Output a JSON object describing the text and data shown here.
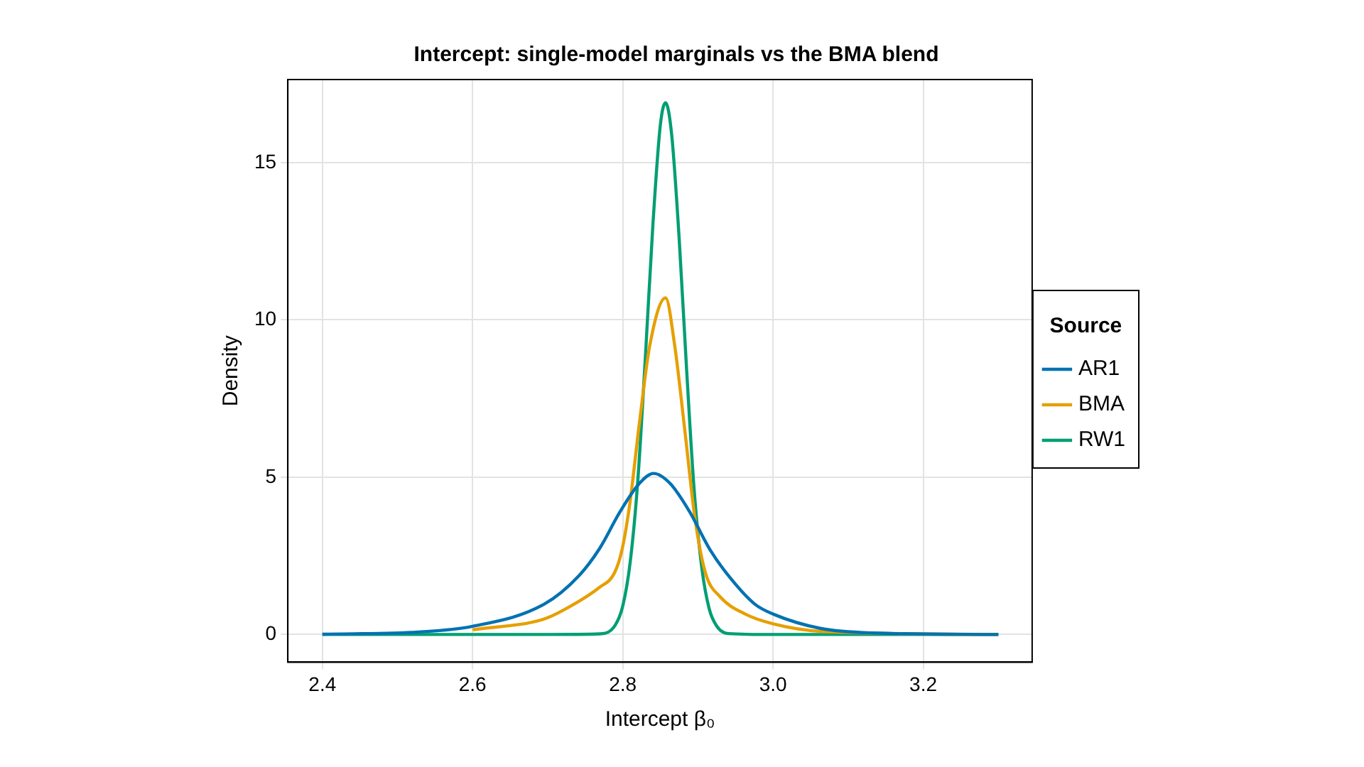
{
  "chart_data": {
    "type": "line",
    "title": "Intercept: single-model marginals vs the BMA blend",
    "xlabel": "Intercept β₀",
    "ylabel": "Density",
    "legend_title": "Source",
    "legend": "right",
    "grid": true,
    "marker": "none",
    "line_style": "solid",
    "xlim": [
      2.354,
      3.345
    ],
    "ylim": [
      -0.88,
      17.64
    ],
    "xticks": [
      2.4,
      2.6,
      2.8,
      {
        "value": 3.0,
        "label": "3.0"
      },
      3.2
    ],
    "yticks": [
      0,
      5,
      10,
      15
    ],
    "series": [
      {
        "name": "AR1",
        "color": "#0072b2",
        "x": [
          2.4,
          2.528,
          2.6,
          2.695,
          2.742,
          2.769,
          2.796,
          2.822,
          2.841,
          2.863,
          2.889,
          2.916,
          2.943,
          2.976,
          3.0,
          3.064,
          3.131,
          3.3
        ],
        "values": [
          0.01,
          0.08,
          0.26,
          0.96,
          1.88,
          2.73,
          3.89,
          4.8,
          5.12,
          4.8,
          3.9,
          2.7,
          1.8,
          0.96,
          0.65,
          0.19,
          0.05,
          0.0
        ]
      },
      {
        "name": "BMA",
        "color": "#e69f00",
        "x": [
          2.6,
          2.695,
          2.729,
          2.769,
          2.789,
          2.799,
          2.809,
          2.822,
          2.836,
          2.857,
          2.869,
          2.883,
          2.896,
          2.91,
          2.93,
          2.963,
          3.0,
          3.064,
          3.3
        ],
        "values": [
          0.15,
          0.49,
          0.88,
          1.5,
          1.96,
          2.7,
          4.1,
          6.7,
          9.2,
          10.7,
          9.2,
          6.4,
          3.7,
          1.96,
          1.19,
          0.65,
          0.34,
          0.1,
          0.0
        ]
      },
      {
        "name": "RW1",
        "color": "#009e73",
        "x": [
          2.4,
          2.7,
          2.77,
          2.79,
          2.8,
          2.81,
          2.82,
          2.83,
          2.84,
          2.85,
          2.857,
          2.865,
          2.875,
          2.885,
          2.895,
          2.905,
          2.915,
          2.925,
          2.94,
          3.0,
          3.3
        ],
        "values": [
          0.0,
          0.0,
          0.02,
          0.3,
          0.91,
          2.33,
          4.9,
          8.8,
          13.0,
          16.2,
          16.9,
          15.9,
          12.6,
          8.4,
          4.6,
          2.15,
          0.82,
          0.27,
          0.03,
          0.0,
          0.0
        ]
      }
    ]
  }
}
